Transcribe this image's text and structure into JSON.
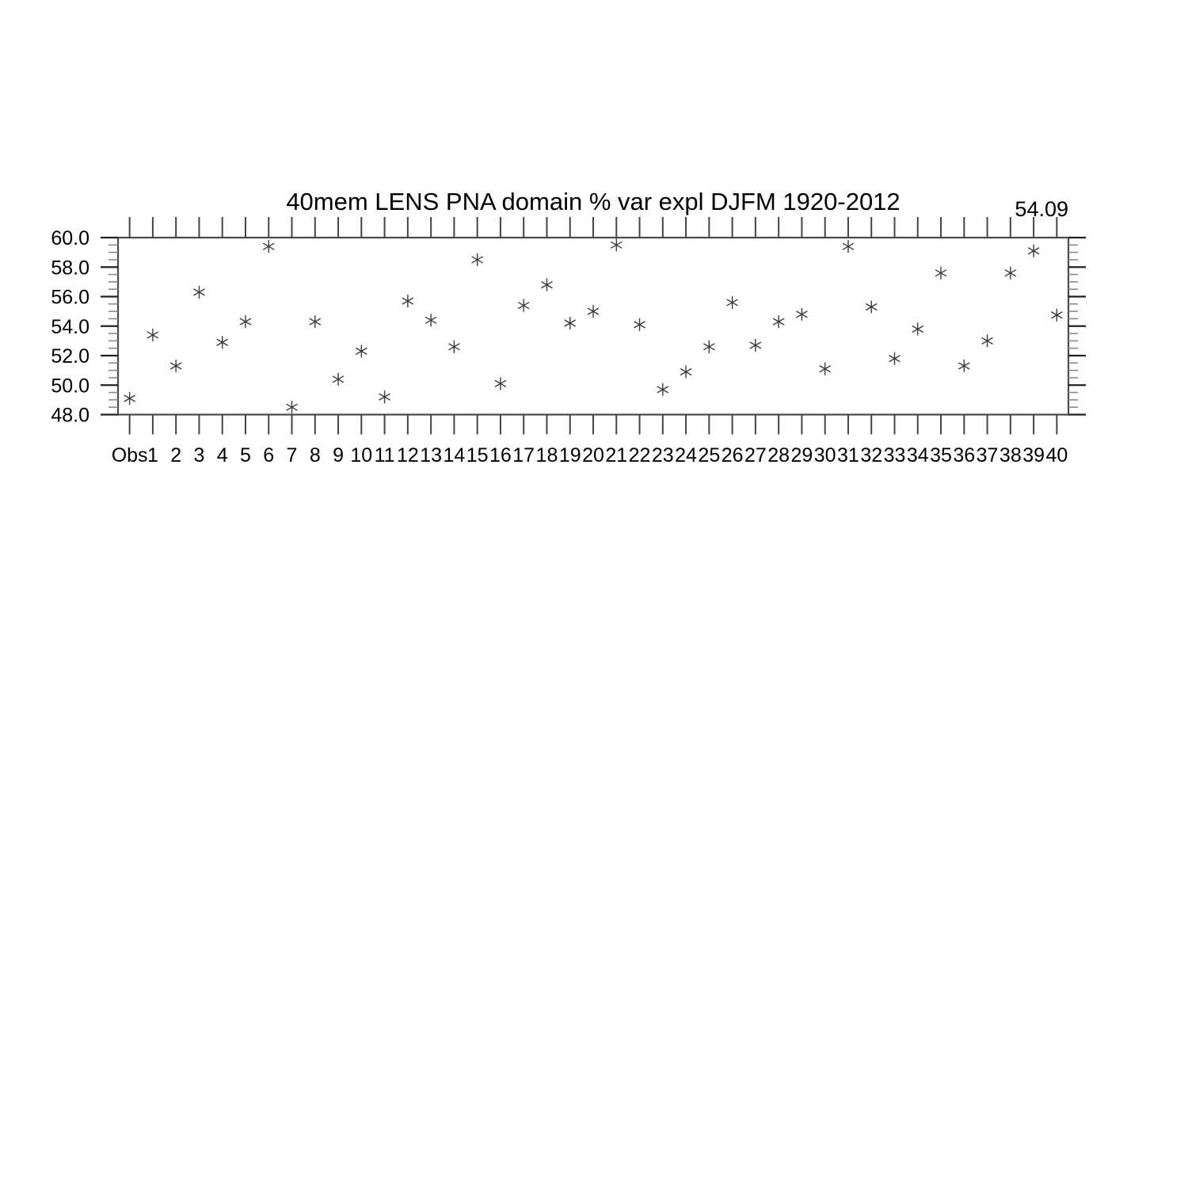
{
  "chart_data": {
    "type": "scatter",
    "title": "40mem LENS PNA domain % var expl DJFM 1920-2012",
    "top_right_annotation": "54.09",
    "xlabel": "",
    "ylabel": "",
    "categories": [
      "Obs",
      "1",
      "2",
      "3",
      "4",
      "5",
      "6",
      "7",
      "8",
      "9",
      "10",
      "11",
      "12",
      "13",
      "14",
      "15",
      "16",
      "17",
      "18",
      "19",
      "20",
      "21",
      "22",
      "23",
      "24",
      "25",
      "26",
      "27",
      "28",
      "29",
      "30",
      "31",
      "32",
      "33",
      "34",
      "35",
      "36",
      "37",
      "38",
      "39",
      "40"
    ],
    "values": [
      49.1,
      53.4,
      51.3,
      56.3,
      52.9,
      54.3,
      59.4,
      48.5,
      54.3,
      50.4,
      52.3,
      49.2,
      55.7,
      54.4,
      52.6,
      58.5,
      50.1,
      55.4,
      56.8,
      54.2,
      55.0,
      59.5,
      54.1,
      49.7,
      50.9,
      52.6,
      55.6,
      52.7,
      54.3,
      54.8,
      51.1,
      59.4,
      55.3,
      51.8,
      53.8,
      57.6,
      51.3,
      53.0,
      57.6,
      59.1,
      54.75
    ],
    "ylim": [
      48.0,
      60.0
    ],
    "y_major_ticks": [
      48,
      50,
      52,
      54,
      56,
      58,
      60
    ],
    "y_tick_labels": [
      "48.0",
      "50.0",
      "52.0",
      "54.0",
      "56.0",
      "58.0",
      "60.0"
    ],
    "y_minor_step": 0.5,
    "grid": false,
    "legend": "none",
    "marker": "asterisk-6-spoke",
    "frame": "box-with-outward-ticks",
    "colors": {
      "background": "#ffffff",
      "box": "#4a4a4a",
      "tick_major": "#222222",
      "tick_minor": "#8a8a8a",
      "category_tick": "#444444",
      "marker": "#3b3b3b",
      "text": "#000000"
    }
  }
}
